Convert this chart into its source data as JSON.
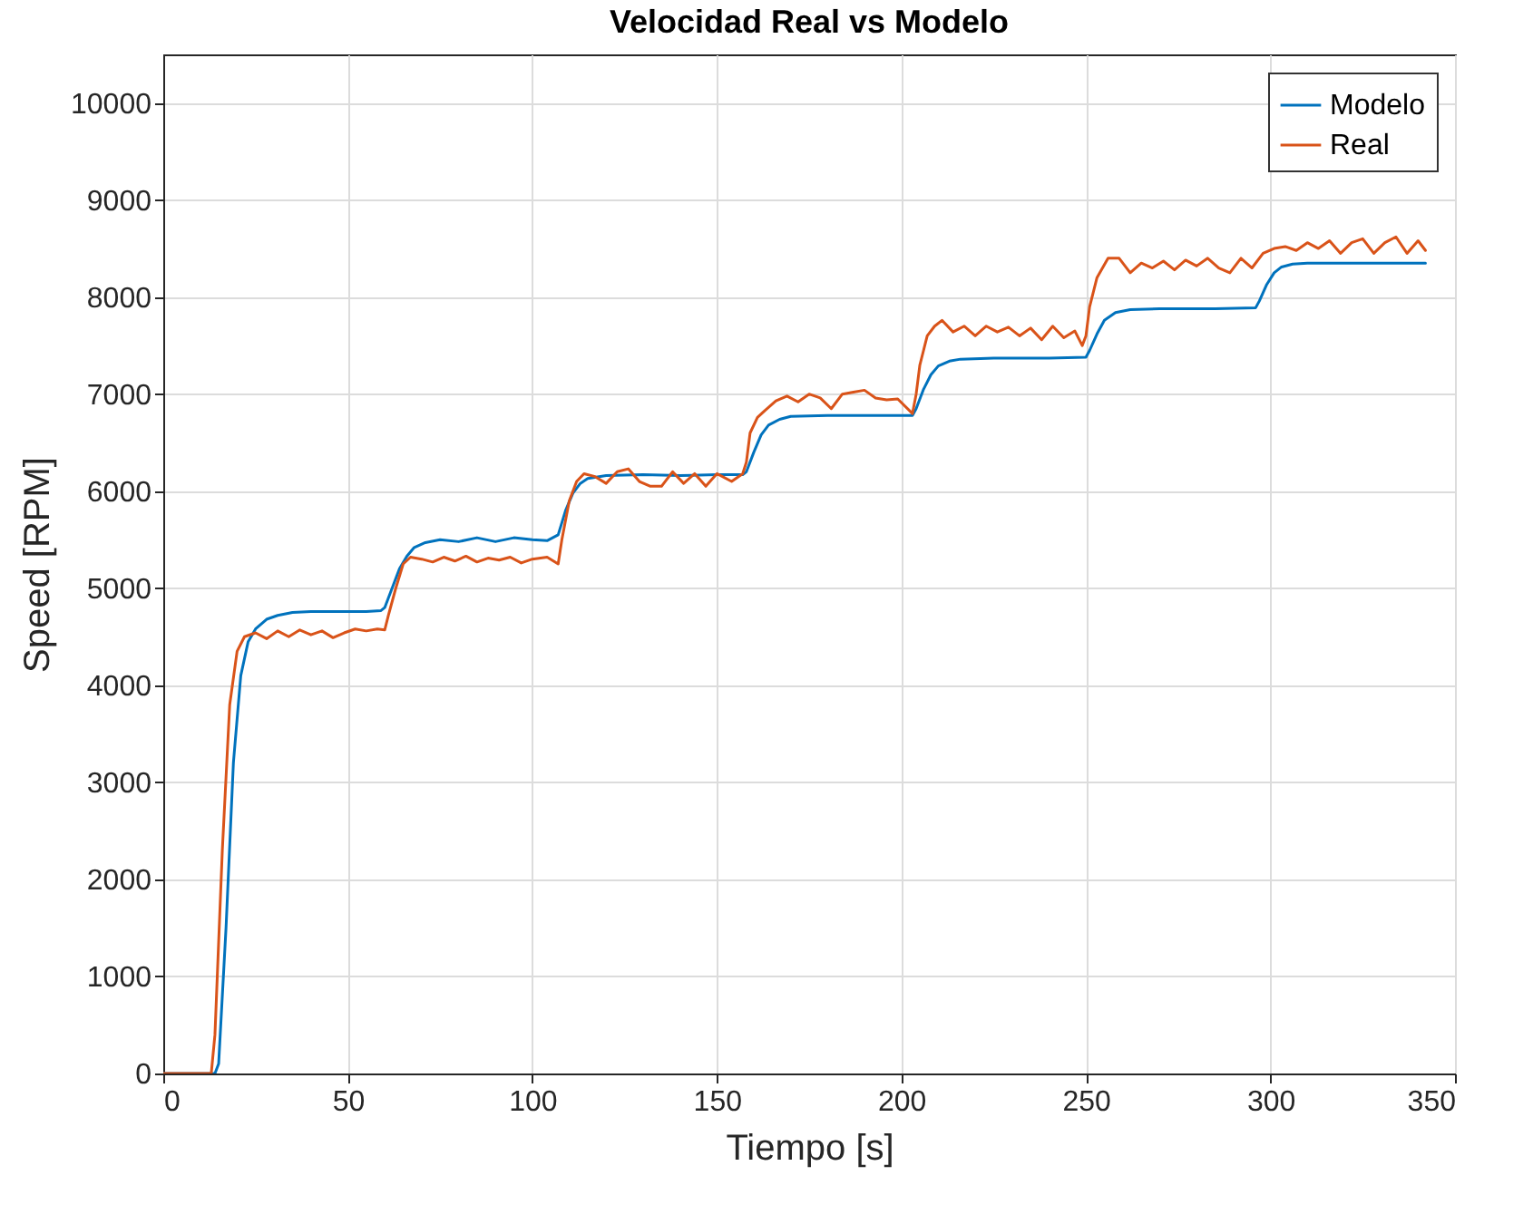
{
  "chart_data": {
    "type": "line",
    "title": "Velocidad Real vs Modelo",
    "xlabel": "Tiempo [s]",
    "ylabel": "Speed [RPM]",
    "xlim": [
      0,
      350
    ],
    "xticks": [
      0,
      50,
      100,
      150,
      200,
      250,
      300,
      350
    ],
    "ylim": [
      0,
      10500
    ],
    "yticks": [
      0,
      1000,
      2000,
      3000,
      4000,
      5000,
      6000,
      7000,
      8000,
      9000,
      10000
    ],
    "grid": true,
    "legend": "top right",
    "line_style": "solid",
    "marker": "none",
    "series": [
      {
        "name": "Modelo",
        "color": "#0072bd",
        "x": [
          0,
          14,
          15,
          17,
          19,
          21,
          23,
          25,
          28,
          31,
          35,
          40,
          45,
          50,
          55,
          59,
          60,
          62,
          64,
          66,
          68,
          71,
          75,
          80,
          85,
          90,
          95,
          100,
          104,
          107,
          109,
          111,
          113,
          115,
          120,
          130,
          140,
          150,
          157,
          158,
          160,
          162,
          164,
          167,
          170,
          180,
          190,
          203,
          204,
          206,
          208,
          210,
          213,
          216,
          225,
          240,
          250,
          251,
          253,
          255,
          258,
          262,
          270,
          285,
          296,
          297,
          299,
          301,
          303,
          306,
          310,
          320,
          342
        ],
        "values": [
          0,
          0,
          100,
          1500,
          3200,
          4100,
          4450,
          4580,
          4680,
          4720,
          4750,
          4760,
          4760,
          4760,
          4760,
          4770,
          4800,
          5000,
          5200,
          5330,
          5420,
          5470,
          5500,
          5480,
          5520,
          5480,
          5520,
          5500,
          5490,
          5550,
          5800,
          5980,
          6080,
          6130,
          6160,
          6170,
          6160,
          6170,
          6170,
          6200,
          6400,
          6580,
          6680,
          6740,
          6770,
          6780,
          6780,
          6780,
          6850,
          7050,
          7200,
          7290,
          7340,
          7360,
          7370,
          7370,
          7380,
          7450,
          7620,
          7760,
          7840,
          7870,
          7880,
          7880,
          7890,
          7960,
          8130,
          8250,
          8310,
          8340,
          8350,
          8350,
          8350
        ]
      },
      {
        "name": "Real",
        "color": "#d95319",
        "x": [
          0,
          13,
          14,
          16,
          18,
          20,
          22,
          25,
          28,
          31,
          34,
          37,
          40,
          43,
          46,
          49,
          52,
          55,
          58,
          60,
          61,
          63,
          65,
          67,
          70,
          73,
          76,
          79,
          82,
          85,
          88,
          91,
          94,
          97,
          100,
          104,
          107,
          108,
          110,
          112,
          114,
          117,
          120,
          123,
          126,
          129,
          132,
          135,
          138,
          141,
          144,
          147,
          150,
          154,
          157,
          158,
          159,
          161,
          163,
          166,
          169,
          172,
          175,
          178,
          181,
          184,
          187,
          190,
          193,
          196,
          199,
          203,
          204,
          205,
          207,
          209,
          211,
          214,
          217,
          220,
          223,
          226,
          229,
          232,
          235,
          238,
          241,
          244,
          247,
          249,
          250,
          251,
          253,
          256,
          259,
          262,
          265,
          268,
          271,
          274,
          277,
          280,
          283,
          286,
          289,
          292,
          295,
          298,
          301,
          304,
          307,
          310,
          313,
          316,
          319,
          322,
          325,
          328,
          331,
          334,
          337,
          340,
          342
        ],
        "values": [
          0,
          0,
          400,
          2300,
          3800,
          4350,
          4500,
          4540,
          4480,
          4560,
          4500,
          4570,
          4520,
          4560,
          4490,
          4540,
          4580,
          4560,
          4580,
          4570,
          4720,
          5000,
          5250,
          5320,
          5300,
          5270,
          5320,
          5280,
          5330,
          5270,
          5310,
          5290,
          5320,
          5260,
          5300,
          5320,
          5250,
          5500,
          5900,
          6100,
          6180,
          6150,
          6080,
          6200,
          6230,
          6100,
          6050,
          6050,
          6200,
          6080,
          6180,
          6050,
          6180,
          6100,
          6180,
          6300,
          6600,
          6760,
          6830,
          6930,
          6980,
          6920,
          7000,
          6960,
          6850,
          7000,
          7020,
          7040,
          6960,
          6940,
          6950,
          6800,
          7000,
          7300,
          7600,
          7700,
          7760,
          7640,
          7700,
          7600,
          7700,
          7640,
          7690,
          7600,
          7680,
          7560,
          7700,
          7580,
          7650,
          7500,
          7600,
          7900,
          8200,
          8400,
          8400,
          8250,
          8350,
          8300,
          8370,
          8280,
          8380,
          8320,
          8400,
          8300,
          8250,
          8400,
          8300,
          8450,
          8500,
          8520,
          8480,
          8560,
          8500,
          8580,
          8450,
          8560,
          8600,
          8450,
          8560,
          8620,
          8450,
          8580,
          8480
        ]
      }
    ]
  }
}
